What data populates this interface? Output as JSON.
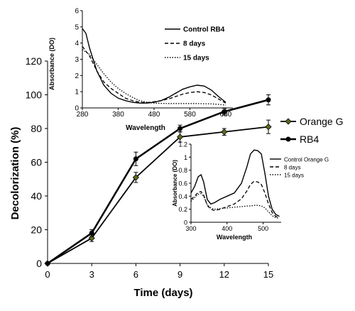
{
  "chart_data": [
    {
      "type": "line",
      "xlabel": "Time (days)",
      "ylabel": "Decolorization (%)",
      "xlim": [
        0,
        15
      ],
      "ylim": [
        0,
        120
      ],
      "xticks": [
        "0",
        "3",
        "6",
        "9",
        "12",
        "15"
      ],
      "yticks": [
        "0",
        "20",
        "40",
        "60",
        "80",
        "100",
        "120"
      ],
      "grid": false,
      "legend_position": "right",
      "series": [
        {
          "name": "Orange G",
          "marker": "diamond",
          "color": "#000000",
          "points": [
            {
              "x": 0,
              "y": 0,
              "err": 0
            },
            {
              "x": 3,
              "y": 15,
              "err": 2
            },
            {
              "x": 6,
              "y": 51,
              "err": 3
            },
            {
              "x": 9,
              "y": 75,
              "err": 3
            },
            {
              "x": 12,
              "y": 78,
              "err": 2
            },
            {
              "x": 15,
              "y": 81,
              "err": 4
            }
          ]
        },
        {
          "name": "RB4",
          "marker": "circle",
          "color": "#000000",
          "points": [
            {
              "x": 0,
              "y": 0,
              "err": 0
            },
            {
              "x": 3,
              "y": 18,
              "err": 2
            },
            {
              "x": 6,
              "y": 62,
              "err": 4
            },
            {
              "x": 9,
              "y": 80,
              "err": 2
            },
            {
              "x": 12,
              "y": 90,
              "err": 2
            },
            {
              "x": 15,
              "y": 97,
              "err": 3
            }
          ]
        }
      ]
    },
    {
      "type": "line",
      "xlabel": "Wavelength",
      "ylabel": "Absorbance (DO)",
      "xlim": [
        280,
        700
      ],
      "ylim": [
        0,
        6
      ],
      "xticks": [
        "280",
        "380",
        "480",
        "580",
        "680"
      ],
      "yticks": [
        "0",
        "1",
        "2",
        "3",
        "4",
        "5",
        "6"
      ],
      "legend_position": "top-right",
      "series": [
        {
          "name": "Control RB4",
          "dash": "solid",
          "x": [
            280,
            290,
            300,
            320,
            340,
            360,
            380,
            400,
            420,
            440,
            460,
            480,
            500,
            520,
            540,
            560,
            580,
            600,
            620,
            640,
            660,
            680
          ],
          "y": [
            4.9,
            4.6,
            3.7,
            2.3,
            1.4,
            0.9,
            0.6,
            0.45,
            0.35,
            0.3,
            0.3,
            0.35,
            0.45,
            0.65,
            0.9,
            1.15,
            1.3,
            1.4,
            1.35,
            1.1,
            0.7,
            0.35
          ]
        },
        {
          "name": "8 days",
          "dash": "dashed",
          "x": [
            280,
            300,
            320,
            340,
            360,
            380,
            400,
            420,
            440,
            460,
            480,
            500,
            520,
            540,
            560,
            580,
            600,
            620,
            640,
            660,
            680
          ],
          "y": [
            3.8,
            3.2,
            2.3,
            1.6,
            1.2,
            0.9,
            0.6,
            0.45,
            0.35,
            0.33,
            0.38,
            0.45,
            0.55,
            0.7,
            0.85,
            0.95,
            1.0,
            0.95,
            0.8,
            0.55,
            0.3
          ]
        },
        {
          "name": "15 days",
          "dash": "dotted",
          "x": [
            280,
            300,
            320,
            340,
            360,
            380,
            400,
            420,
            440,
            460,
            480,
            500,
            520,
            540,
            560,
            580,
            600,
            620,
            640,
            660,
            680
          ],
          "y": [
            3.6,
            3.3,
            2.7,
            2.1,
            1.6,
            1.2,
            0.9,
            0.65,
            0.45,
            0.35,
            0.3,
            0.28,
            0.27,
            0.27,
            0.27,
            0.27,
            0.27,
            0.26,
            0.25,
            0.22,
            0.18
          ]
        }
      ]
    },
    {
      "type": "line",
      "xlabel": "Wavelength",
      "ylabel": "Absorbance (DO)",
      "xlim": [
        300,
        550
      ],
      "ylim": [
        0,
        1.2
      ],
      "xticks": [
        "300",
        "400",
        "500"
      ],
      "yticks": [
        "0",
        "0.2",
        "0.4",
        "0.6",
        "0.8",
        "1",
        "1.2"
      ],
      "legend_position": "top-right",
      "series": [
        {
          "name": "Control Orange G",
          "dash": "solid",
          "x": [
            300,
            310,
            320,
            328,
            335,
            345,
            355,
            365,
            380,
            400,
            420,
            440,
            455,
            465,
            475,
            485,
            495,
            505,
            515,
            525,
            535,
            545
          ],
          "y": [
            0.45,
            0.55,
            0.7,
            0.73,
            0.62,
            0.35,
            0.28,
            0.3,
            0.35,
            0.4,
            0.45,
            0.6,
            0.85,
            1.05,
            1.11,
            1.1,
            1.05,
            0.75,
            0.4,
            0.2,
            0.12,
            0.09
          ]
        },
        {
          "name": "8 days",
          "dash": "dashed",
          "x": [
            300,
            310,
            320,
            328,
            335,
            345,
            355,
            365,
            380,
            400,
            420,
            440,
            455,
            465,
            475,
            485,
            495,
            505,
            515,
            525,
            535,
            545
          ],
          "y": [
            0.35,
            0.4,
            0.46,
            0.47,
            0.42,
            0.26,
            0.2,
            0.18,
            0.2,
            0.24,
            0.28,
            0.36,
            0.48,
            0.58,
            0.63,
            0.62,
            0.58,
            0.45,
            0.28,
            0.15,
            0.09,
            0.07
          ]
        },
        {
          "name": "15 days",
          "dash": "dotted",
          "x": [
            300,
            310,
            320,
            328,
            335,
            345,
            355,
            365,
            380,
            400,
            420,
            440,
            455,
            465,
            475,
            485,
            495,
            505,
            515,
            525,
            535,
            545
          ],
          "y": [
            0.32,
            0.38,
            0.43,
            0.44,
            0.4,
            0.27,
            0.22,
            0.2,
            0.21,
            0.22,
            0.23,
            0.24,
            0.25,
            0.25,
            0.26,
            0.26,
            0.25,
            0.22,
            0.16,
            0.1,
            0.07,
            0.06
          ]
        }
      ]
    }
  ]
}
